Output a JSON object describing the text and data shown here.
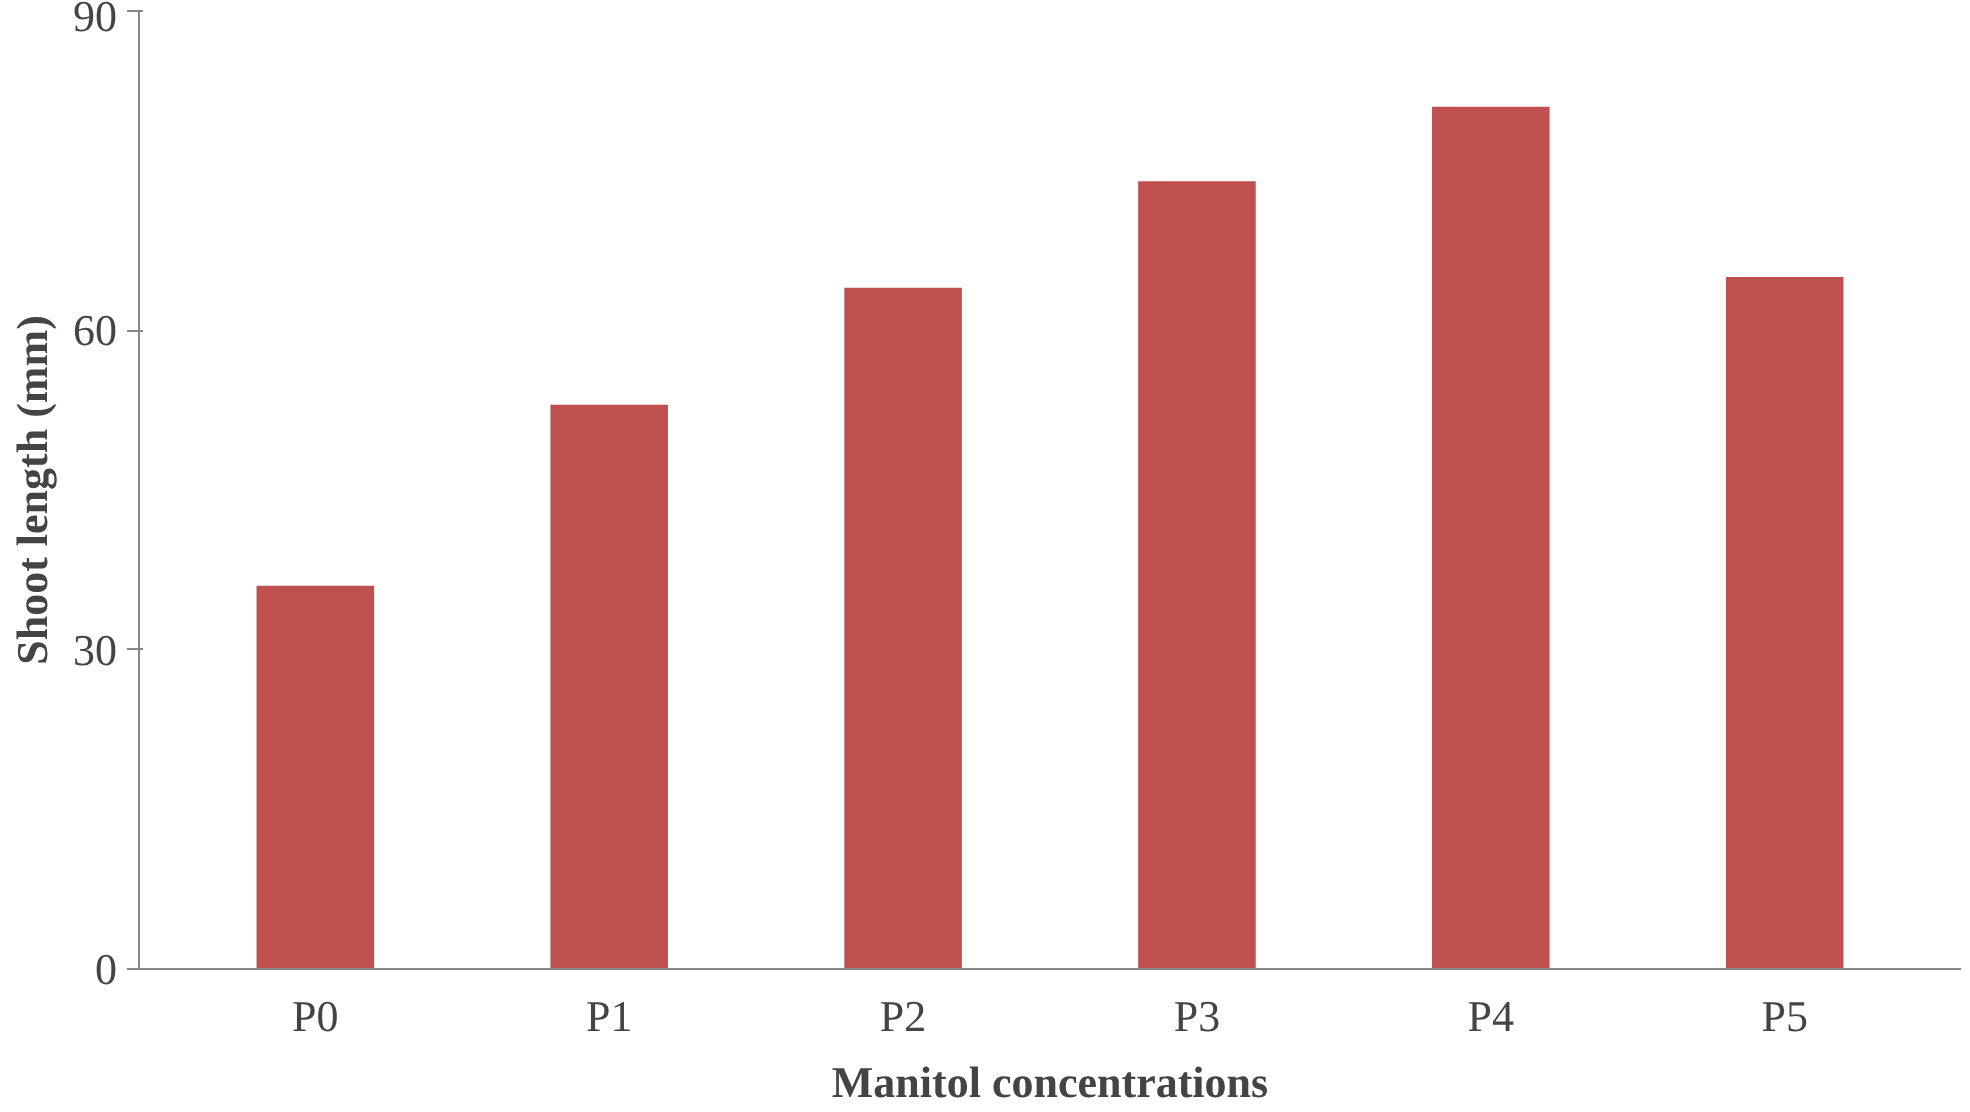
{
  "chart_data": {
    "type": "bar",
    "xlabel": "Manitol concentrations",
    "ylabel": "Shoot length (mm)",
    "categories": [
      "P0",
      "P1",
      "P2",
      "P3",
      "P4",
      "P5"
    ],
    "values": [
      36,
      53,
      64,
      74,
      81,
      65
    ],
    "color": "#c0504d",
    "ylim": [
      0,
      90
    ],
    "yticks": [
      0,
      30,
      60,
      90
    ],
    "grid": false
  }
}
